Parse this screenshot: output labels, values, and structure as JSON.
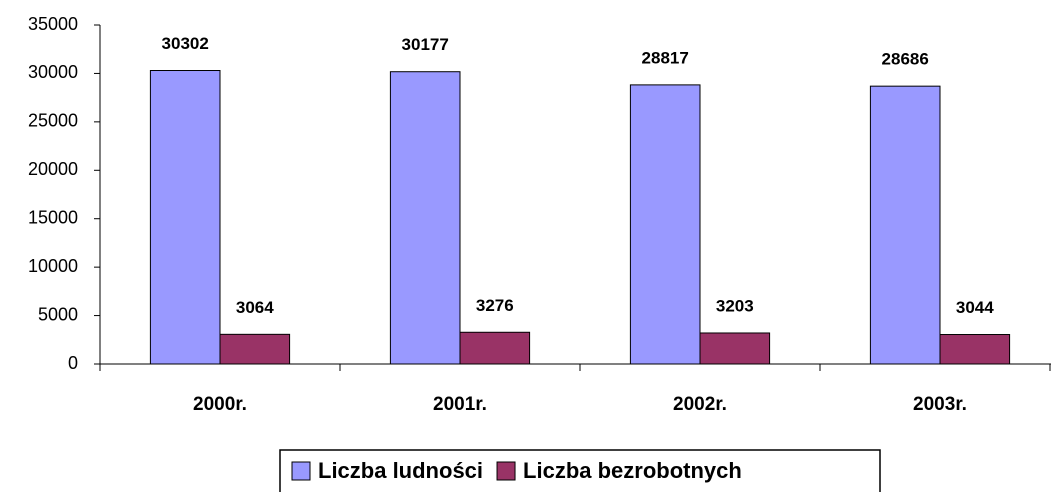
{
  "chart_data": {
    "type": "bar",
    "categories": [
      "2000r.",
      "2001r.",
      "2002r.",
      "2003r."
    ],
    "series": [
      {
        "name": "Liczba ludności",
        "color": "#9999ff",
        "values": [
          30302,
          30177,
          28817,
          28686
        ]
      },
      {
        "name": "Liczba bezrobotnych",
        "color": "#993366",
        "values": [
          3064,
          3276,
          3203,
          3044
        ]
      }
    ],
    "ylim": [
      0,
      35000
    ],
    "yticks": [
      0,
      5000,
      10000,
      15000,
      20000,
      25000,
      30000,
      35000
    ],
    "grid": false,
    "legend": "bottom"
  }
}
